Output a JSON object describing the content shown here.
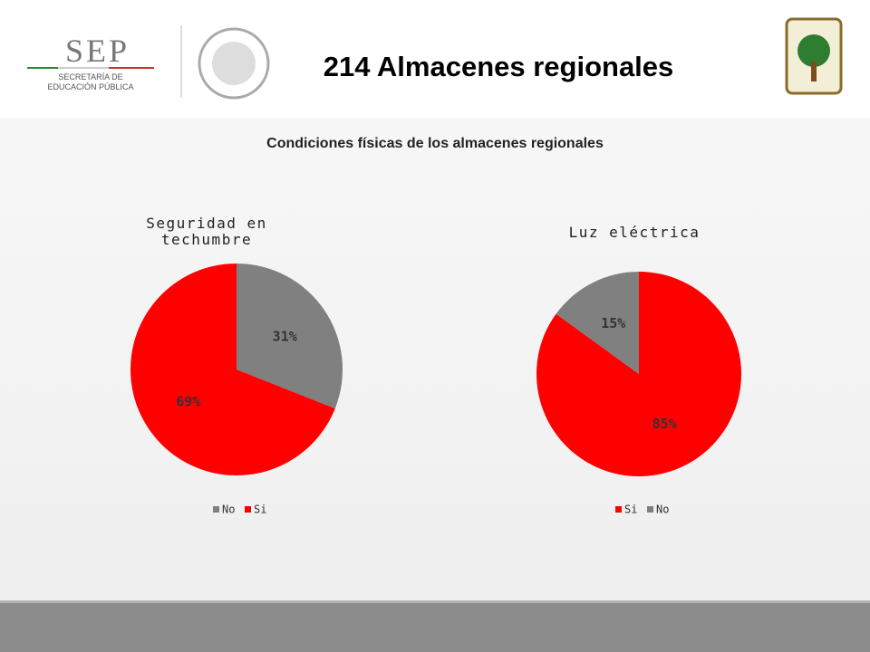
{
  "header": {
    "logo_text": "SEP",
    "logo_subtext": [
      "SECRETARÍA DE",
      "EDUCACIÓN PÚBLICA"
    ],
    "title": "214 Almacenes regionales"
  },
  "subtitle": "Condiciones físicas de los almacenes regionales",
  "chart_data": [
    {
      "type": "pie",
      "title": "Seguridad en techumbre",
      "categories": [
        "No",
        "Si"
      ],
      "values": [
        31,
        69
      ],
      "value_labels": [
        "31%",
        "69%"
      ],
      "colors": [
        "#808080",
        "#ff0000"
      ],
      "legend": "bottom"
    },
    {
      "type": "pie",
      "title": "Luz eléctrica",
      "categories": [
        "Si",
        "No"
      ],
      "values": [
        85,
        15
      ],
      "value_labels": [
        "85%",
        "15%"
      ],
      "colors": [
        "#ff0000",
        "#808080"
      ],
      "legend": "bottom"
    }
  ]
}
